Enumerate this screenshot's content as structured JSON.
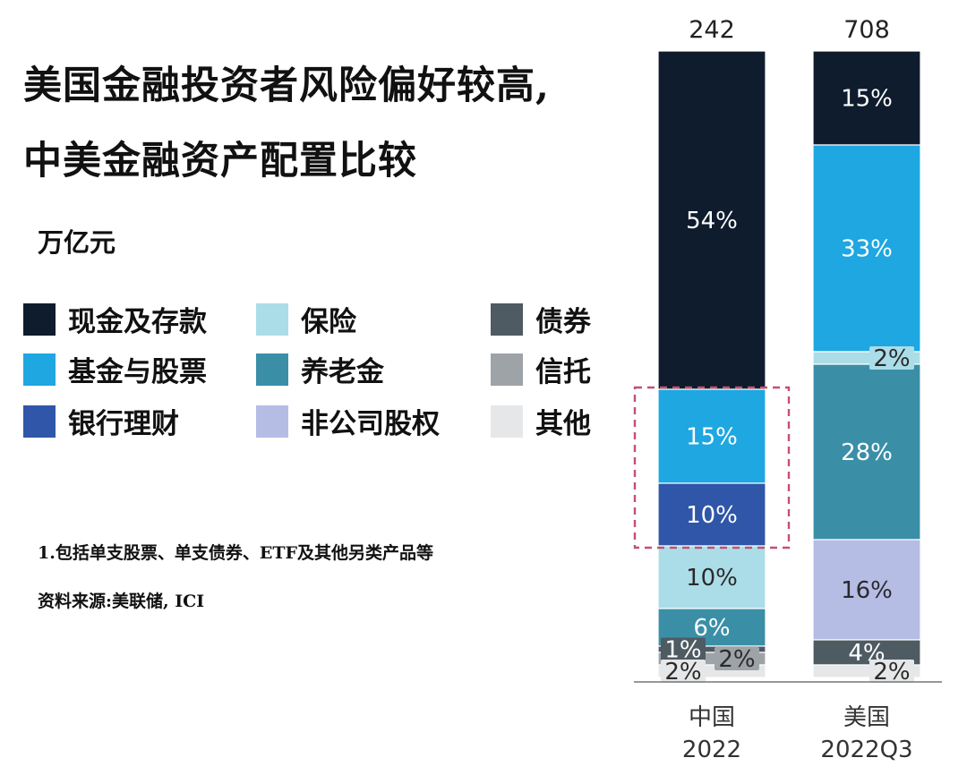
{
  "header": {
    "title_line1": "美国金融投资者风险偏好较高,",
    "title_line2": "中美金融资产配置比较",
    "unit": "万亿元"
  },
  "legend": [
    {
      "label": "现金及存款",
      "color": "#0f1c2e"
    },
    {
      "label": "基金与股票",
      "color": "#1ea7e1"
    },
    {
      "label": "银行理财",
      "color": "#2f56a8"
    },
    {
      "label": "保险",
      "color": "#abdde8"
    },
    {
      "label": "养老金",
      "color": "#3a8fa7"
    },
    {
      "label": "非公司股权",
      "color": "#b5bde5"
    },
    {
      "label": "债券",
      "color": "#4f5b63"
    },
    {
      "label": "信托",
      "color": "#9ea3a8"
    },
    {
      "label": "其他",
      "color": "#e6e7e8"
    }
  ],
  "notes": {
    "note1": "1.包括单支股票、单支债券、ETF及其他另类产品等",
    "note2": "资料来源:美联储, ICI"
  },
  "chart_data": {
    "type": "bar",
    "stacked": true,
    "normalized": true,
    "categories": [
      {
        "line1": "中国",
        "line2": "2022",
        "total": "242"
      },
      {
        "line1": "美国",
        "line2": "2022Q3",
        "total": "708"
      }
    ],
    "series": [
      {
        "name": "现金及存款",
        "values": [
          54,
          15
        ],
        "labels": [
          "54%",
          "15%"
        ]
      },
      {
        "name": "基金与股票",
        "values": [
          15,
          33
        ],
        "labels": [
          "15%",
          "33%"
        ]
      },
      {
        "name": "银行理财",
        "values": [
          10,
          0
        ],
        "labels": [
          "10%",
          ""
        ]
      },
      {
        "name": "保险",
        "values": [
          10,
          2
        ],
        "labels": [
          "10%",
          "2%"
        ]
      },
      {
        "name": "养老金",
        "values": [
          6,
          28
        ],
        "labels": [
          "6%",
          "28%"
        ]
      },
      {
        "name": "非公司股权",
        "values": [
          0,
          16
        ],
        "labels": [
          "",
          "16%"
        ]
      },
      {
        "name": "债券",
        "values": [
          1,
          4
        ],
        "labels": [
          "1%",
          "4%"
        ]
      },
      {
        "name": "信托",
        "values": [
          2,
          0
        ],
        "labels": [
          "2%",
          ""
        ]
      },
      {
        "name": "其他",
        "values": [
          2,
          2
        ],
        "labels": [
          "2%",
          "2%"
        ]
      }
    ],
    "highlight": {
      "category": "中国",
      "series": [
        "基金与股票",
        "银行理财"
      ],
      "color": "#c4506f"
    }
  }
}
